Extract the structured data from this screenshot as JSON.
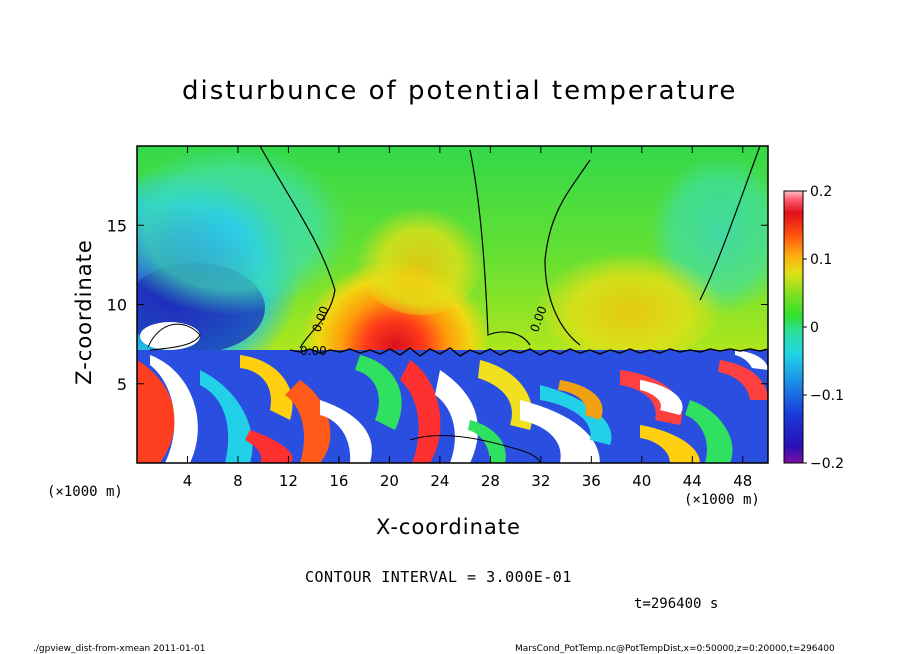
{
  "chart_data": {
    "type": "heatmap",
    "title": "disturbunce of potential temperature",
    "xlabel": "X-coordinate",
    "ylabel": "Z-coordinate",
    "x_unit": "(×1000 m)",
    "y_unit": "(×1000 m)",
    "xlim": [
      0,
      50
    ],
    "ylim": [
      0,
      20
    ],
    "x_ticks": [
      4,
      8,
      12,
      16,
      20,
      24,
      28,
      32,
      36,
      40,
      44,
      48
    ],
    "y_ticks": [
      5,
      10,
      15
    ],
    "colorbar": {
      "range": [
        -0.2,
        0.2
      ],
      "ticks": [
        {
          "value": 0.2,
          "label": "0.2"
        },
        {
          "value": 0.1,
          "label": "0.1"
        },
        {
          "value": 0,
          "label": "0"
        },
        {
          "value": -0.1,
          "label": "−0.1"
        },
        {
          "value": -0.2,
          "label": "−0.2"
        }
      ]
    },
    "contour_interval_text": "CONTOUR INTERVAL = 3.000E-01",
    "contour_labels": [
      "0.00",
      "0.00",
      "0.00"
    ]
  },
  "time_label": "t=296400 s",
  "footer_left": "./gpview_dist-from-xmean  2011-01-01",
  "footer_right": "MarsCond_PotTemp.nc@PotTempDist,x=0:50000,z=0:20000,t=296400"
}
